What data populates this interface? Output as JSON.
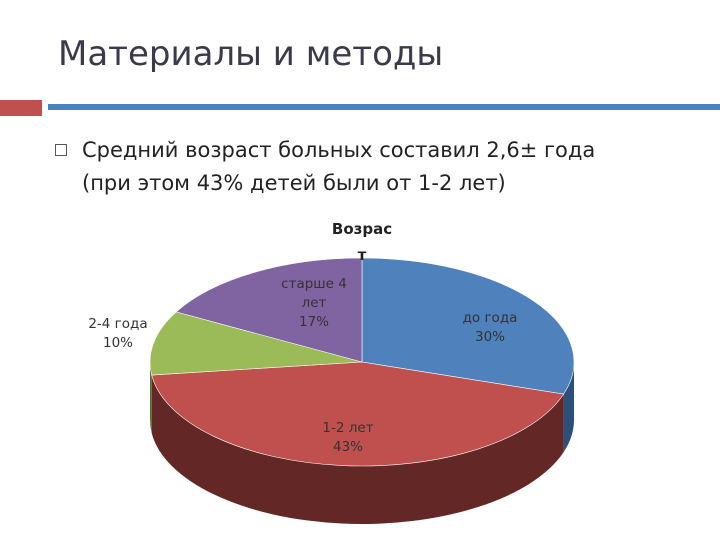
{
  "slide": {
    "title": "Материалы и методы",
    "bullet_line1": "Средний возраст больных составил 2,6±  года",
    "bullet_line2": "(при этом 43% детей были от 1-2 лет)"
  },
  "colors": {
    "accent_red": "#c0504d",
    "accent_blue": "#4f81bd"
  },
  "chart_data": {
    "type": "pie",
    "title_line1": "Возрас",
    "title_line2": "т",
    "style": "3d",
    "slices": [
      {
        "label": "до года",
        "value": 30,
        "pct": "30%",
        "color": "#4f81bd",
        "side_color": "#2d4f7c"
      },
      {
        "label": "1-2 лет",
        "value": 43,
        "pct": "43%",
        "color": "#c0504d",
        "side_color": "#632826"
      },
      {
        "label": "2-4 года",
        "value": 10,
        "pct": "10%",
        "color": "#9bbb59",
        "side_color": "#5b7033"
      },
      {
        "label": "старше 4 лет",
        "value": 17,
        "pct": "17%",
        "color": "#8064a2",
        "side_color": "#4a3a5f"
      }
    ]
  }
}
